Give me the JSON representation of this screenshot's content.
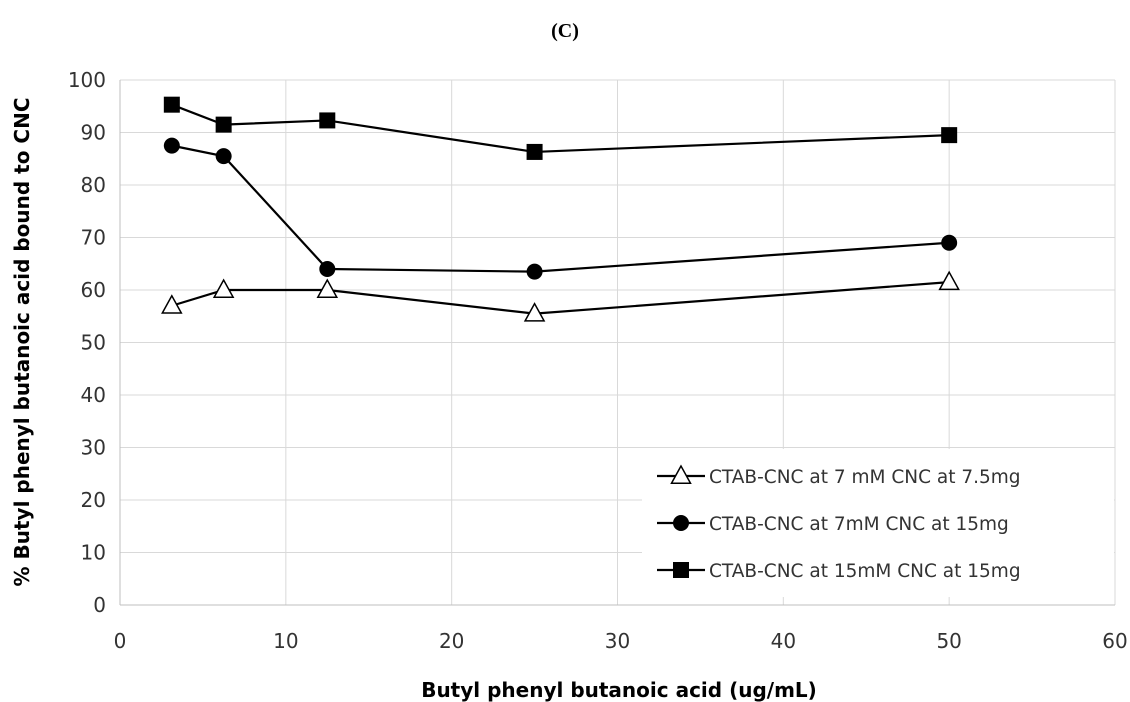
{
  "chart_data": {
    "type": "line",
    "title": "(C)",
    "xlabel": "Butyl phenyl butanoic acid (ug/mL)",
    "ylabel": "% Butyl phenyl butanoic acid  bound to CNC",
    "xlim": [
      0,
      60
    ],
    "ylim": [
      0,
      100
    ],
    "xticks": [
      0,
      10,
      20,
      30,
      40,
      50,
      60
    ],
    "yticks": [
      0,
      10,
      20,
      30,
      40,
      50,
      60,
      70,
      80,
      90,
      100
    ],
    "grid": true,
    "legend_position": "bottom-right",
    "series": [
      {
        "name": "CTAB-CNC at 7 mM CNC at 7.5mg",
        "marker": "triangle-open",
        "color": "#000000",
        "x": [
          3.125,
          6.25,
          12.5,
          25,
          50
        ],
        "y": [
          57.0,
          60.0,
          60.0,
          55.5,
          61.5
        ]
      },
      {
        "name": "CTAB-CNC at 7mM CNC at 15mg",
        "marker": "circle-filled",
        "color": "#000000",
        "x": [
          3.125,
          6.25,
          12.5,
          25,
          50
        ],
        "y": [
          87.5,
          85.5,
          64.0,
          63.5,
          69.0
        ]
      },
      {
        "name": "CTAB-CNC at 15mM CNC at 15mg",
        "marker": "square-filled",
        "color": "#000000",
        "x": [
          3.125,
          6.25,
          12.5,
          25,
          50
        ],
        "y": [
          95.3,
          91.5,
          92.3,
          86.3,
          89.5
        ]
      }
    ]
  }
}
